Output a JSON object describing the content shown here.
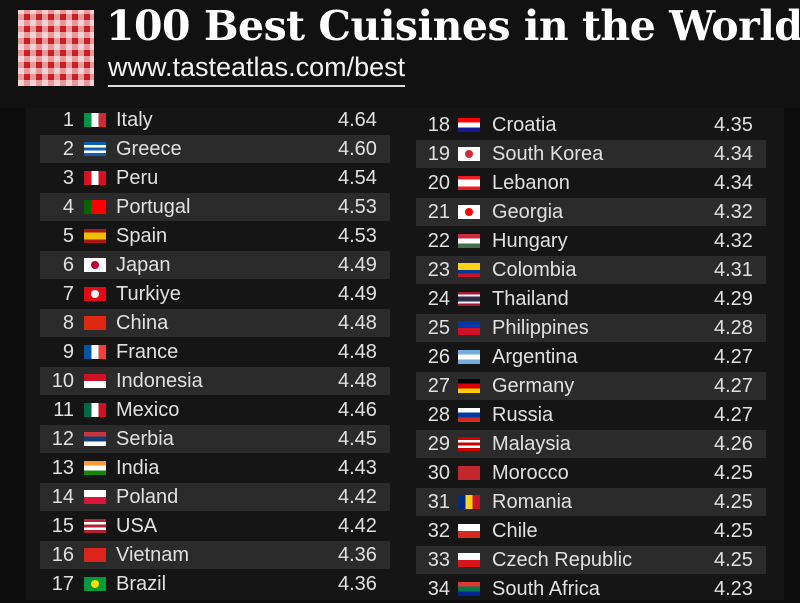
{
  "header": {
    "title": "100 Best Cuisines in the World",
    "url": "www.tasteatlas.com/best",
    "logo_colors": {
      "red": "#c81f25",
      "white": "#ffffff"
    }
  },
  "left_column": [
    {
      "rank": "1",
      "country": "Italy",
      "score": "4.64",
      "flag": [
        "#009246",
        "#ffffff",
        "#ce2b37"
      ],
      "flag_dir": "v"
    },
    {
      "rank": "2",
      "country": "Greece",
      "score": "4.60",
      "flag": [
        "#0d5eaf",
        "#ffffff",
        "#0d5eaf",
        "#ffffff",
        "#0d5eaf"
      ],
      "flag_dir": "h"
    },
    {
      "rank": "3",
      "country": "Peru",
      "score": "4.54",
      "flag": [
        "#d91023",
        "#ffffff",
        "#d91023"
      ],
      "flag_dir": "v"
    },
    {
      "rank": "4",
      "country": "Portugal",
      "score": "4.53",
      "flag": [
        "#006600",
        "#ff0000",
        "#ff0000"
      ],
      "flag_dir": "v"
    },
    {
      "rank": "5",
      "country": "Spain",
      "score": "4.53",
      "flag": [
        "#aa151b",
        "#f1bf00",
        "#f1bf00",
        "#aa151b"
      ],
      "flag_dir": "h"
    },
    {
      "rank": "6",
      "country": "Japan",
      "score": "4.49",
      "flag": [
        "#ffffff"
      ],
      "flag_dir": "h",
      "dot": "#bc002d"
    },
    {
      "rank": "7",
      "country": "Turkiye",
      "score": "4.49",
      "flag": [
        "#e30a17"
      ],
      "flag_dir": "h",
      "dot": "#ffffff"
    },
    {
      "rank": "8",
      "country": "China",
      "score": "4.48",
      "flag": [
        "#de2910"
      ],
      "flag_dir": "h"
    },
    {
      "rank": "9",
      "country": "France",
      "score": "4.48",
      "flag": [
        "#0055a4",
        "#ffffff",
        "#ef4135"
      ],
      "flag_dir": "v"
    },
    {
      "rank": "10",
      "country": "Indonesia",
      "score": "4.48",
      "flag": [
        "#ce1126",
        "#ffffff"
      ],
      "flag_dir": "h"
    },
    {
      "rank": "11",
      "country": "Mexico",
      "score": "4.46",
      "flag": [
        "#006847",
        "#ffffff",
        "#ce1126"
      ],
      "flag_dir": "v"
    },
    {
      "rank": "12",
      "country": "Serbia",
      "score": "4.45",
      "flag": [
        "#c6363c",
        "#0c4076",
        "#ffffff"
      ],
      "flag_dir": "h"
    },
    {
      "rank": "13",
      "country": "India",
      "score": "4.43",
      "flag": [
        "#ff9933",
        "#ffffff",
        "#138808"
      ],
      "flag_dir": "h"
    },
    {
      "rank": "14",
      "country": "Poland",
      "score": "4.42",
      "flag": [
        "#ffffff",
        "#dc143c"
      ],
      "flag_dir": "h"
    },
    {
      "rank": "15",
      "country": "USA",
      "score": "4.42",
      "flag": [
        "#b22234",
        "#ffffff",
        "#b22234",
        "#ffffff",
        "#b22234"
      ],
      "flag_dir": "h"
    },
    {
      "rank": "16",
      "country": "Vietnam",
      "score": "4.36",
      "flag": [
        "#da251d"
      ],
      "flag_dir": "h"
    },
    {
      "rank": "17",
      "country": "Brazil",
      "score": "4.36",
      "flag": [
        "#009c3b"
      ],
      "flag_dir": "h",
      "dot": "#ffdf00"
    }
  ],
  "right_column": [
    {
      "rank": "18",
      "country": "Croatia",
      "score": "4.35",
      "flag": [
        "#ff0000",
        "#ffffff",
        "#171796"
      ],
      "flag_dir": "h"
    },
    {
      "rank": "19",
      "country": "South Korea",
      "score": "4.34",
      "flag": [
        "#ffffff"
      ],
      "flag_dir": "h",
      "dot": "#cd2e3a"
    },
    {
      "rank": "20",
      "country": "Lebanon",
      "score": "4.34",
      "flag": [
        "#ed1c24",
        "#ffffff",
        "#ffffff",
        "#ed1c24"
      ],
      "flag_dir": "h"
    },
    {
      "rank": "21",
      "country": "Georgia",
      "score": "4.32",
      "flag": [
        "#ffffff"
      ],
      "flag_dir": "h",
      "dot": "#ff0000"
    },
    {
      "rank": "22",
      "country": "Hungary",
      "score": "4.32",
      "flag": [
        "#cd2a3e",
        "#ffffff",
        "#436f4d"
      ],
      "flag_dir": "h"
    },
    {
      "rank": "23",
      "country": "Colombia",
      "score": "4.31",
      "flag": [
        "#fcd116",
        "#fcd116",
        "#003893",
        "#ce1126"
      ],
      "flag_dir": "h"
    },
    {
      "rank": "24",
      "country": "Thailand",
      "score": "4.29",
      "flag": [
        "#a51931",
        "#f4f5f8",
        "#2d2a4a",
        "#2d2a4a",
        "#f4f5f8",
        "#a51931"
      ],
      "flag_dir": "h"
    },
    {
      "rank": "25",
      "country": "Philippines",
      "score": "4.28",
      "flag": [
        "#0038a8",
        "#ce1126"
      ],
      "flag_dir": "h"
    },
    {
      "rank": "26",
      "country": "Argentina",
      "score": "4.27",
      "flag": [
        "#74acdf",
        "#ffffff",
        "#74acdf"
      ],
      "flag_dir": "h"
    },
    {
      "rank": "27",
      "country": "Germany",
      "score": "4.27",
      "flag": [
        "#000000",
        "#dd0000",
        "#ffce00"
      ],
      "flag_dir": "h"
    },
    {
      "rank": "28",
      "country": "Russia",
      "score": "4.27",
      "flag": [
        "#ffffff",
        "#0039a6",
        "#d52b1e"
      ],
      "flag_dir": "h"
    },
    {
      "rank": "29",
      "country": "Malaysia",
      "score": "4.26",
      "flag": [
        "#cc0001",
        "#ffffff",
        "#cc0001",
        "#ffffff",
        "#cc0001"
      ],
      "flag_dir": "h"
    },
    {
      "rank": "30",
      "country": "Morocco",
      "score": "4.25",
      "flag": [
        "#c1272d"
      ],
      "flag_dir": "h"
    },
    {
      "rank": "31",
      "country": "Romania",
      "score": "4.25",
      "flag": [
        "#002b7f",
        "#fcd116",
        "#ce1126"
      ],
      "flag_dir": "v"
    },
    {
      "rank": "32",
      "country": "Chile",
      "score": "4.25",
      "flag": [
        "#ffffff",
        "#d52b1e"
      ],
      "flag_dir": "h"
    },
    {
      "rank": "33",
      "country": "Czech Republic",
      "score": "4.25",
      "flag": [
        "#ffffff",
        "#d7141a"
      ],
      "flag_dir": "h"
    },
    {
      "rank": "34",
      "country": "South Africa",
      "score": "4.23",
      "flag": [
        "#de3831",
        "#007a4d",
        "#002395"
      ],
      "flag_dir": "h"
    }
  ]
}
